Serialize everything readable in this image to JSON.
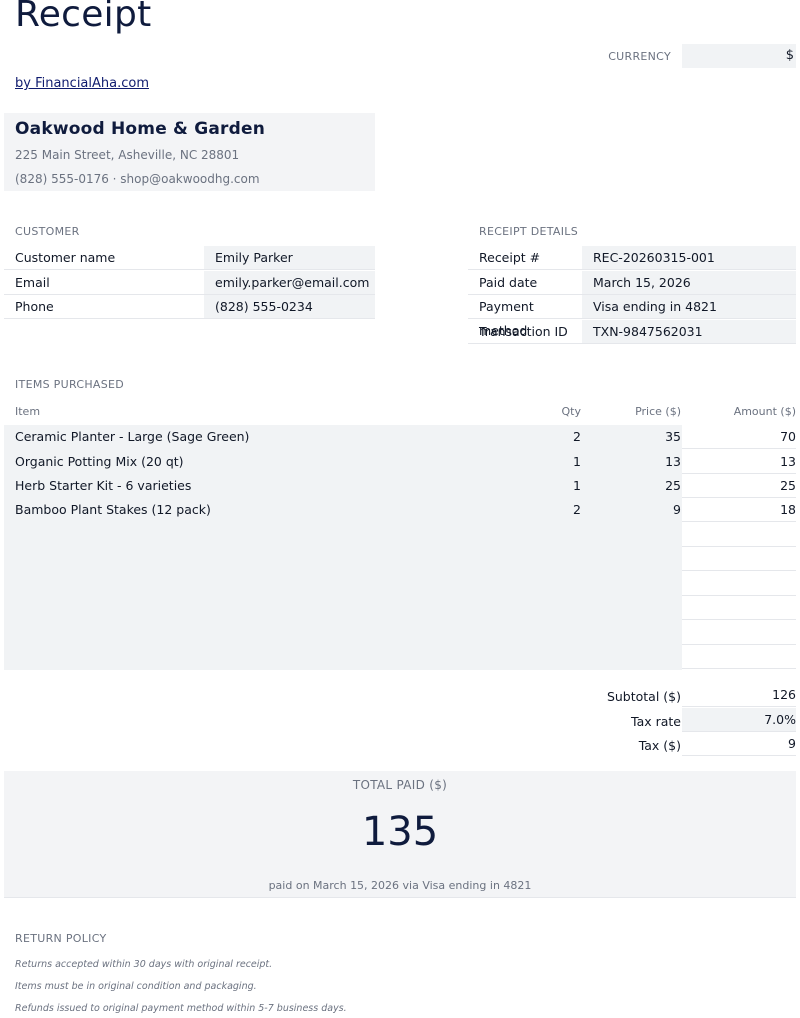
{
  "header": {
    "title": "Receipt",
    "byline": "by FinancialAha.com",
    "currency_label": "CURRENCY",
    "currency_value": "$"
  },
  "company": {
    "name": "Oakwood Home & Garden",
    "address": "225 Main Street, Asheville, NC 28801",
    "contact": "(828) 555-0176  ·  shop@oakwoodhg.com"
  },
  "customer": {
    "section_label": "CUSTOMER",
    "rows": [
      {
        "key": "Customer name",
        "value": "Emily Parker"
      },
      {
        "key": "Email",
        "value": "emily.parker@email.com"
      },
      {
        "key": "Phone",
        "value": "(828) 555-0234"
      }
    ]
  },
  "details": {
    "section_label": "RECEIPT DETAILS",
    "rows": [
      {
        "key": "Receipt #",
        "value": "REC-20260315-001"
      },
      {
        "key": "Paid date",
        "value": "March 15, 2026"
      },
      {
        "key": "Payment method",
        "value": "Visa ending in 4821"
      },
      {
        "key": "Transaction ID",
        "value": "TXN-9847562031"
      }
    ]
  },
  "items": {
    "section_label": "ITEMS PURCHASED",
    "headers": {
      "item": "Item",
      "qty": "Qty",
      "price": "Price ($)",
      "amount": "Amount ($)"
    },
    "rows": [
      {
        "item": "Ceramic Planter - Large (Sage Green)",
        "qty": "2",
        "price": "35",
        "amount": "70"
      },
      {
        "item": "Organic Potting Mix (20 qt)",
        "qty": "1",
        "price": "13",
        "amount": "13"
      },
      {
        "item": "Herb Starter Kit - 6 varieties",
        "qty": "1",
        "price": "25",
        "amount": "25"
      },
      {
        "item": "Bamboo Plant Stakes (12 pack)",
        "qty": "2",
        "price": "9",
        "amount": "18"
      }
    ]
  },
  "summary": {
    "subtotal_label": "Subtotal ($)",
    "subtotal_value": "126",
    "tax_rate_label": "Tax rate",
    "tax_rate_value": "7.0%",
    "tax_label": "Tax ($)",
    "tax_value": "9"
  },
  "total": {
    "label": "TOTAL PAID ($)",
    "amount": "135",
    "note": "paid on March 15, 2026 via Visa ending in 4821"
  },
  "policy": {
    "section_label": "RETURN POLICY",
    "lines": [
      "Returns accepted within 30 days with original receipt.",
      "Items must be in original condition and packaging.",
      "Refunds issued to original payment method within 5-7 business days."
    ]
  }
}
